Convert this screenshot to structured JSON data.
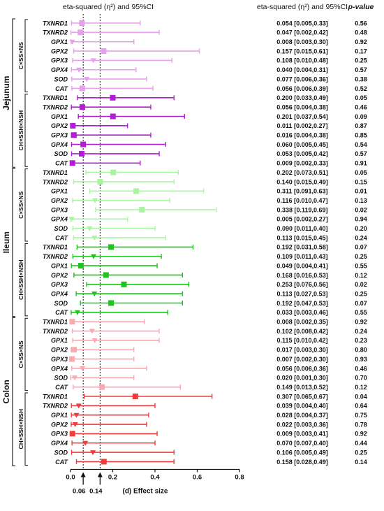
{
  "header": {
    "chart_title": "eta-squared (η²) and 95%CI",
    "col_value": "eta-squared (η²) and 95%CI",
    "col_p": "p-value"
  },
  "axis": {
    "xlabel": "(d) Effect size",
    "ticks": [
      "0.0",
      "0.2",
      "0.4",
      "0.6",
      "0.8"
    ],
    "threshold_labels": [
      "0.06",
      "0.14"
    ]
  },
  "tissues": [
    "Jejunum",
    "Ileum",
    "Colon"
  ],
  "group_labels": [
    "C×SS×NS",
    "CH×SSH×NSH"
  ],
  "colors": {
    "jejunum_1": "#e6a0ec",
    "jejunum_2": "#b21ed6",
    "ileum_1": "#a8f5a0",
    "ileum_2": "#1fc21f",
    "colon_1": "#f8aab0",
    "colon_2": "#f03c3c"
  },
  "chart_data": {
    "type": "forest",
    "xlim": [
      0,
      0.8
    ],
    "xticks": [
      0,
      0.2,
      0.4,
      0.6,
      0.8
    ],
    "reference_lines": [
      0.06,
      0.14
    ],
    "rows": [
      {
        "tissue": "Jejunum",
        "group": "C×SS×NS",
        "gene": "TXNRD1",
        "eta2": 0.054,
        "lo": 0.005,
        "hi": 0.33,
        "label": "0.054 [0.005,0.33]",
        "p": "0.56",
        "color": "#e6a0ec",
        "marker": "square"
      },
      {
        "tissue": "Jejunum",
        "group": "C×SS×NS",
        "gene": "TXNRD2",
        "eta2": 0.047,
        "lo": 0.002,
        "hi": 0.42,
        "label": "0.047 [0.002,0.42]",
        "p": "0.48",
        "color": "#e6a0ec",
        "marker": "square"
      },
      {
        "tissue": "Jejunum",
        "group": "C×SS×NS",
        "gene": "GPX1",
        "eta2": 0.008,
        "lo": 0.003,
        "hi": 0.3,
        "label": "0.008 [0.003,0.30]",
        "p": "0.92",
        "color": "#e6a0ec",
        "marker": "triangle"
      },
      {
        "tissue": "Jejunum",
        "group": "C×SS×NS",
        "gene": "GPX2",
        "eta2": 0.157,
        "lo": 0.015,
        "hi": 0.61,
        "label": "0.157 [0.015,0.61]",
        "p": "0.17",
        "color": "#e6a0ec",
        "marker": "square"
      },
      {
        "tissue": "Jejunum",
        "group": "C×SS×NS",
        "gene": "GPX3",
        "eta2": 0.108,
        "lo": 0.01,
        "hi": 0.48,
        "label": "0.108 [0.010,0.48]",
        "p": "0.25",
        "color": "#e6a0ec",
        "marker": "triangle"
      },
      {
        "tissue": "Jejunum",
        "group": "C×SS×NS",
        "gene": "GPX4",
        "eta2": 0.04,
        "lo": 0.004,
        "hi": 0.31,
        "label": "0.040 [0.004,0.31]",
        "p": "0.57",
        "color": "#e6a0ec",
        "marker": "triangle"
      },
      {
        "tissue": "Jejunum",
        "group": "C×SS×NS",
        "gene": "SOD",
        "eta2": 0.077,
        "lo": 0.006,
        "hi": 0.36,
        "label": "0.077 [0.006,0.36]",
        "p": "0.38",
        "color": "#e6a0ec",
        "marker": "triangle"
      },
      {
        "tissue": "Jejunum",
        "group": "C×SS×NS",
        "gene": "CAT",
        "eta2": 0.056,
        "lo": 0.006,
        "hi": 0.39,
        "label": "0.056 [0.006,0.39]",
        "p": "0.52",
        "color": "#e6a0ec",
        "marker": "square"
      },
      {
        "tissue": "Jejunum",
        "group": "CH×SSH×NSH",
        "gene": "TXNRD1",
        "eta2": 0.2,
        "lo": 0.033,
        "hi": 0.49,
        "label": "0.200 [0.033,0.49]",
        "p": "0.05",
        "color": "#b21ed6",
        "marker": "square"
      },
      {
        "tissue": "Jejunum",
        "group": "CH×SSH×NSH",
        "gene": "TXNRD2",
        "eta2": 0.056,
        "lo": 0.004,
        "hi": 0.38,
        "label": "0.056 [0.004,0.38]",
        "p": "0.46",
        "color": "#b21ed6",
        "marker": "square"
      },
      {
        "tissue": "Jejunum",
        "group": "CH×SSH×NSH",
        "gene": "GPX1",
        "eta2": 0.201,
        "lo": 0.037,
        "hi": 0.54,
        "label": "0.201 [0.037,0.54]",
        "p": "0.09",
        "color": "#b21ed6",
        "marker": "square"
      },
      {
        "tissue": "Jejunum",
        "group": "CH×SSH×NSH",
        "gene": "GPX2",
        "eta2": 0.011,
        "lo": 0.002,
        "hi": 0.27,
        "label": "0.011 [0.002,0.27]",
        "p": "0.87",
        "color": "#b21ed6",
        "marker": "square"
      },
      {
        "tissue": "Jejunum",
        "group": "CH×SSH×NSH",
        "gene": "GPX3",
        "eta2": 0.016,
        "lo": 0.004,
        "hi": 0.38,
        "label": "0.016 [0.004,0.38]",
        "p": "0.85",
        "color": "#b21ed6",
        "marker": "square"
      },
      {
        "tissue": "Jejunum",
        "group": "CH×SSH×NSH",
        "gene": "GPX4",
        "eta2": 0.06,
        "lo": 0.005,
        "hi": 0.45,
        "label": "0.060 [0.005,0.45]",
        "p": "0.54",
        "color": "#b21ed6",
        "marker": "square"
      },
      {
        "tissue": "Jejunum",
        "group": "CH×SSH×NSH",
        "gene": "SOD",
        "eta2": 0.053,
        "lo": 0.005,
        "hi": 0.42,
        "label": "0.053 [0.005,0.42]",
        "p": "0.57",
        "color": "#b21ed6",
        "marker": "square"
      },
      {
        "tissue": "Jejunum",
        "group": "CH×SSH×NSH",
        "gene": "CAT",
        "eta2": 0.009,
        "lo": 0.002,
        "hi": 0.33,
        "label": "0.009 [0.002,0.33]",
        "p": "0.91",
        "color": "#b21ed6",
        "marker": "square"
      },
      {
        "tissue": "Ileum",
        "group": "C×SS×NS",
        "gene": "TXNRD1",
        "eta2": 0.202,
        "lo": 0.073,
        "hi": 0.51,
        "label": "0.202 [0.073,0.51]",
        "p": "0.05",
        "color": "#a8f5a0",
        "marker": "square"
      },
      {
        "tissue": "Ileum",
        "group": "C×SS×NS",
        "gene": "TXNRD2",
        "eta2": 0.14,
        "lo": 0.015,
        "hi": 0.49,
        "label": "0.140 [0.015,0.49]",
        "p": "0.15",
        "color": "#a8f5a0",
        "marker": "square"
      },
      {
        "tissue": "Ileum",
        "group": "C×SS×NS",
        "gene": "GPX1",
        "eta2": 0.311,
        "lo": 0.091,
        "hi": 0.63,
        "label": "0.311 [0.091,0.63]",
        "p": "0.01",
        "color": "#a8f5a0",
        "marker": "square"
      },
      {
        "tissue": "Ileum",
        "group": "C×SS×NS",
        "gene": "GPX2",
        "eta2": 0.116,
        "lo": 0.01,
        "hi": 0.47,
        "label": "0.116 [0.010,0.47]",
        "p": "0.13",
        "color": "#a8f5a0",
        "marker": "triangle"
      },
      {
        "tissue": "Ileum",
        "group": "C×SS×NS",
        "gene": "GPX3",
        "eta2": 0.338,
        "lo": 0.119,
        "hi": 0.69,
        "label": "0.338 [0.119,0.69]",
        "p": "0.02",
        "color": "#a8f5a0",
        "marker": "square"
      },
      {
        "tissue": "Ileum",
        "group": "C×SS×NS",
        "gene": "GPX4",
        "eta2": 0.005,
        "lo": 0.002,
        "hi": 0.27,
        "label": "0.005 [0.002,0.27]",
        "p": "0.94",
        "color": "#a8f5a0",
        "marker": "triangle"
      },
      {
        "tissue": "Ileum",
        "group": "C×SS×NS",
        "gene": "SOD",
        "eta2": 0.09,
        "lo": 0.011,
        "hi": 0.4,
        "label": "0.090 [0.011,0.40]",
        "p": "0.20",
        "color": "#a8f5a0",
        "marker": "triangle"
      },
      {
        "tissue": "Ileum",
        "group": "C×SS×NS",
        "gene": "CAT",
        "eta2": 0.113,
        "lo": 0.015,
        "hi": 0.45,
        "label": "0.113 [0.015,0.45]",
        "p": "0.24",
        "color": "#a8f5a0",
        "marker": "triangle"
      },
      {
        "tissue": "Ileum",
        "group": "CH×SSH×NSH",
        "gene": "TXNRD1",
        "eta2": 0.192,
        "lo": 0.031,
        "hi": 0.58,
        "label": "0.192 [0.031,0.58]",
        "p": "0.07",
        "color": "#1fc21f",
        "marker": "square"
      },
      {
        "tissue": "Ileum",
        "group": "CH×SSH×NSH",
        "gene": "TXNRD2",
        "eta2": 0.109,
        "lo": 0.011,
        "hi": 0.43,
        "label": "0.109 [0.011,0.43]",
        "p": "0.25",
        "color": "#1fc21f",
        "marker": "triangle"
      },
      {
        "tissue": "Ileum",
        "group": "CH×SSH×NSH",
        "gene": "GPX1",
        "eta2": 0.049,
        "lo": 0.004,
        "hi": 0.41,
        "label": "0.049 [0.004,0.41]",
        "p": "0.55",
        "color": "#1fc21f",
        "marker": "square"
      },
      {
        "tissue": "Ileum",
        "group": "CH×SSH×NSH",
        "gene": "GPX2",
        "eta2": 0.168,
        "lo": 0.016,
        "hi": 0.53,
        "label": "0.168 [0.016,0.53]",
        "p": "0.12",
        "color": "#1fc21f",
        "marker": "square"
      },
      {
        "tissue": "Ileum",
        "group": "CH×SSH×NSH",
        "gene": "GPX3",
        "eta2": 0.253,
        "lo": 0.076,
        "hi": 0.56,
        "label": "0.253 [0.076,0.56]",
        "p": "0.02",
        "color": "#1fc21f",
        "marker": "square"
      },
      {
        "tissue": "Ileum",
        "group": "CH×SSH×NSH",
        "gene": "GPX4",
        "eta2": 0.113,
        "lo": 0.027,
        "hi": 0.53,
        "label": "0.113 [0.027,0.53]",
        "p": "0.25",
        "color": "#1fc21f",
        "marker": "triangle"
      },
      {
        "tissue": "Ileum",
        "group": "CH×SSH×NSH",
        "gene": "SOD",
        "eta2": 0.192,
        "lo": 0.047,
        "hi": 0.53,
        "label": "0.192 [0.047,0.53]",
        "p": "0.07",
        "color": "#1fc21f",
        "marker": "square"
      },
      {
        "tissue": "Ileum",
        "group": "CH×SSH×NSH",
        "gene": "CAT",
        "eta2": 0.033,
        "lo": 0.003,
        "hi": 0.46,
        "label": "0.033 [0.003,0.46]",
        "p": "0.55",
        "color": "#1fc21f",
        "marker": "triangle"
      },
      {
        "tissue": "Colon",
        "group": "C×SS×NS",
        "gene": "TXNRD1",
        "eta2": 0.008,
        "lo": 0.002,
        "hi": 0.35,
        "label": "0.008 [0.002,0.35]",
        "p": "0.92",
        "color": "#f8aab0",
        "marker": "square"
      },
      {
        "tissue": "Colon",
        "group": "C×SS×NS",
        "gene": "TXNRD2",
        "eta2": 0.102,
        "lo": 0.008,
        "hi": 0.42,
        "label": "0.102 [0.008,0.42]",
        "p": "0.24",
        "color": "#f8aab0",
        "marker": "triangle"
      },
      {
        "tissue": "Colon",
        "group": "C×SS×NS",
        "gene": "GPX1",
        "eta2": 0.115,
        "lo": 0.01,
        "hi": 0.42,
        "label": "0.115 [0.010,0.42]",
        "p": "0.23",
        "color": "#f8aab0",
        "marker": "triangle"
      },
      {
        "tissue": "Colon",
        "group": "C×SS×NS",
        "gene": "GPX2",
        "eta2": 0.017,
        "lo": 0.003,
        "hi": 0.3,
        "label": "0.017 [0.003,0.30]",
        "p": "0.80",
        "color": "#f8aab0",
        "marker": "square"
      },
      {
        "tissue": "Colon",
        "group": "C×SS×NS",
        "gene": "GPX3",
        "eta2": 0.007,
        "lo": 0.002,
        "hi": 0.3,
        "label": "0.007 [0.002,0.30]",
        "p": "0.93",
        "color": "#f8aab0",
        "marker": "square"
      },
      {
        "tissue": "Colon",
        "group": "C×SS×NS",
        "gene": "GPX4",
        "eta2": 0.056,
        "lo": 0.006,
        "hi": 0.36,
        "label": "0.056 [0.006,0.36]",
        "p": "0.46",
        "color": "#f8aab0",
        "marker": "triangle"
      },
      {
        "tissue": "Colon",
        "group": "C×SS×NS",
        "gene": "SOD",
        "eta2": 0.02,
        "lo": 0.001,
        "hi": 0.3,
        "label": "0.020 [0.001,0.30]",
        "p": "0.70",
        "color": "#f8aab0",
        "marker": "triangle"
      },
      {
        "tissue": "Colon",
        "group": "C×SS×NS",
        "gene": "CAT",
        "eta2": 0.149,
        "lo": 0.013,
        "hi": 0.52,
        "label": "0.149 [0.013,0.52]",
        "p": "0.12",
        "color": "#f8aab0",
        "marker": "square"
      },
      {
        "tissue": "Colon",
        "group": "CH×SSH×NSH",
        "gene": "TXNRD1",
        "eta2": 0.307,
        "lo": 0.065,
        "hi": 0.67,
        "label": "0.307 [0.065,0.67]",
        "p": "0.04",
        "color": "#f03c3c",
        "marker": "square"
      },
      {
        "tissue": "Colon",
        "group": "CH×SSH×NSH",
        "gene": "TXNRD2",
        "eta2": 0.039,
        "lo": 0.004,
        "hi": 0.4,
        "label": "0.039 [0.004,0.40]",
        "p": "0.64",
        "color": "#f03c3c",
        "marker": "triangle"
      },
      {
        "tissue": "Colon",
        "group": "CH×SSH×NSH",
        "gene": "GPX1",
        "eta2": 0.028,
        "lo": 0.004,
        "hi": 0.37,
        "label": "0.028 [0.004,0.37]",
        "p": "0.75",
        "color": "#f03c3c",
        "marker": "triangle"
      },
      {
        "tissue": "Colon",
        "group": "CH×SSH×NSH",
        "gene": "GPX2",
        "eta2": 0.022,
        "lo": 0.003,
        "hi": 0.36,
        "label": "0.022 [0.003,0.36]",
        "p": "0.78",
        "color": "#f03c3c",
        "marker": "triangle"
      },
      {
        "tissue": "Colon",
        "group": "CH×SSH×NSH",
        "gene": "GPX3",
        "eta2": 0.009,
        "lo": 0.003,
        "hi": 0.41,
        "label": "0.009 [0.003,0.41]",
        "p": "0.92",
        "color": "#f03c3c",
        "marker": "square"
      },
      {
        "tissue": "Colon",
        "group": "CH×SSH×NSH",
        "gene": "GPX4",
        "eta2": 0.07,
        "lo": 0.007,
        "hi": 0.4,
        "label": "0.070 [0.007,0.40]",
        "p": "0.44",
        "color": "#f03c3c",
        "marker": "triangle"
      },
      {
        "tissue": "Colon",
        "group": "CH×SSH×NSH",
        "gene": "SOD",
        "eta2": 0.106,
        "lo": 0.005,
        "hi": 0.49,
        "label": "0.106 [0.005,0.49]",
        "p": "0.25",
        "color": "#f03c3c",
        "marker": "triangle"
      },
      {
        "tissue": "Colon",
        "group": "CH×SSH×NSH",
        "gene": "CAT",
        "eta2": 0.158,
        "lo": 0.028,
        "hi": 0.49,
        "label": "0.158 [0.028,0.49]",
        "p": "0.14",
        "color": "#f03c3c",
        "marker": "square"
      }
    ]
  }
}
